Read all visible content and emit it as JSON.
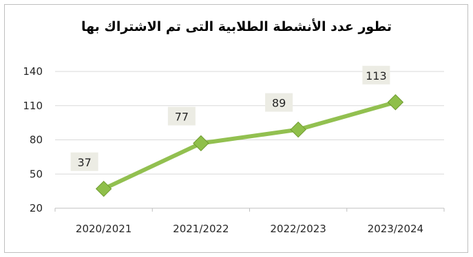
{
  "chart_data": {
    "type": "line",
    "title": "تطور عدد الأنشطة الطلابية التى تم الاشتراك بها",
    "categories": [
      "2020/2021",
      "2021/2022",
      "2022/2023",
      "2023/2024"
    ],
    "values": [
      37,
      77,
      89,
      113
    ],
    "ylim": [
      20,
      140
    ],
    "yticks": [
      20,
      50,
      80,
      110,
      140
    ],
    "grid": true,
    "legend": "none",
    "colors": {
      "line": "#92c050",
      "marker_fill": "#8fbf4a",
      "marker_edge": "#6e9a2e",
      "label_bg": "#ecece4",
      "grid": "#d9d9d9"
    }
  }
}
